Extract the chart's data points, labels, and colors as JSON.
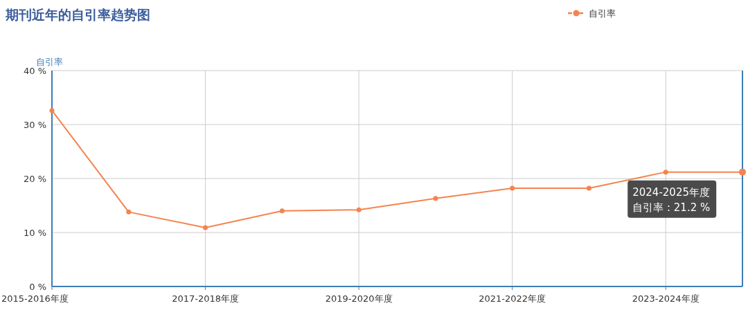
{
  "chart_data": {
    "type": "line",
    "title": "期刊近年的自引率趋势图",
    "ylabel": "自引率",
    "categories": [
      "2015-2016年度",
      null,
      "2017-2018年度",
      null,
      "2019-2020年度",
      null,
      "2021-2022年度",
      null,
      "2023-2024年度",
      null
    ],
    "series": [
      {
        "name": "自引率",
        "color": "#f5834f",
        "values": [
          32.6,
          13.8,
          10.9,
          14.0,
          14.2,
          16.3,
          18.2,
          18.2,
          21.2,
          21.2
        ]
      }
    ],
    "ylim": [
      0,
      40
    ],
    "yticks": [
      {
        "value": 0,
        "label": "0 %"
      },
      {
        "value": 10,
        "label": "10 %"
      },
      {
        "value": 20,
        "label": "20 %"
      },
      {
        "value": 30,
        "label": "30 %"
      },
      {
        "value": 40,
        "label": "40 %"
      }
    ],
    "annotations": [
      {
        "text": "2024-2025年度",
        "y": 21.2
      },
      {
        "text": "自引率 : 21.2 %",
        "y": 21.2
      }
    ],
    "grid": true,
    "legend": "top right",
    "marker": "circle",
    "line_style": "solid"
  }
}
